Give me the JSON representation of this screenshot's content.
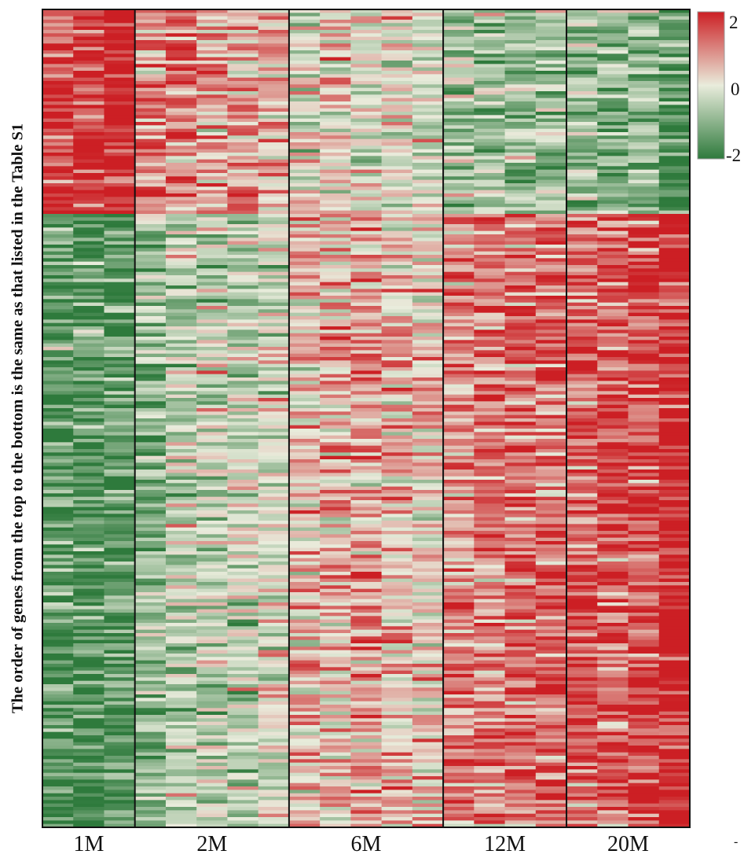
{
  "chart_data": {
    "type": "heatmap",
    "ylabel": "The order of genes from the top to the bottom is the same as that listed in the Table S1",
    "xlabel": "",
    "groups": [
      {
        "label": "1M",
        "columns": 3
      },
      {
        "label": "2M",
        "columns": 5
      },
      {
        "label": "6M",
        "columns": 5
      },
      {
        "label": "12M",
        "columns": 4
      },
      {
        "label": "20M",
        "columns": 4
      }
    ],
    "row_count": 240,
    "row_clusters": [
      {
        "name": "",
        "rows": 60,
        "column_means": [
          1.6,
          1.8,
          1.9,
          1.0,
          1.2,
          0.8,
          0.6,
          0.5,
          0.1,
          0.2,
          0.0,
          0.1,
          -0.1,
          -0.6,
          -0.7,
          -0.8,
          -0.8,
          -1.0,
          -1.1,
          -1.0,
          -1.5
        ]
      },
      {
        "name": "",
        "rows": 180,
        "column_means": [
          -1.5,
          -1.6,
          -1.5,
          -0.9,
          -0.5,
          -0.3,
          -0.4,
          -0.1,
          0.4,
          0.6,
          0.7,
          0.5,
          0.3,
          0.9,
          1.1,
          1.2,
          1.3,
          1.3,
          1.4,
          1.6,
          2.0
        ]
      }
    ],
    "color_scale": {
      "min": -2,
      "max": 2,
      "low_color": "#2e7a3c",
      "mid_color": "#e9ecdc",
      "high_color": "#cc1f24"
    },
    "legend": {
      "position": "top-right",
      "ticks": [
        "2",
        "0",
        "-2"
      ]
    }
  }
}
